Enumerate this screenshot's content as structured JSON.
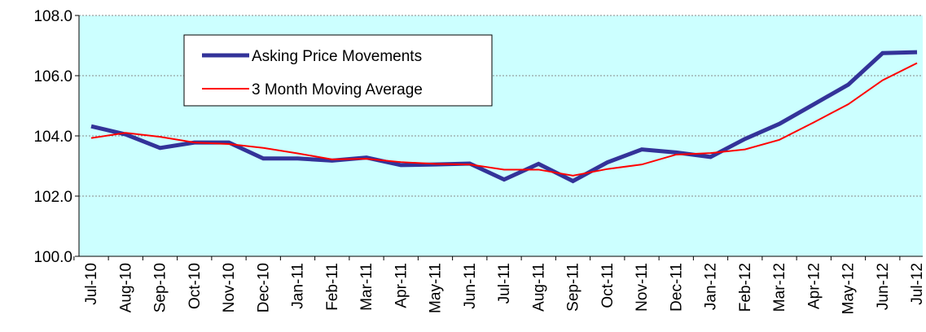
{
  "chart_data": {
    "type": "line",
    "categories": [
      "Jul-10",
      "Aug-10",
      "Sep-10",
      "Oct-10",
      "Nov-10",
      "Dec-10",
      "Jan-11",
      "Feb-11",
      "Mar-11",
      "Apr-11",
      "May-11",
      "Jun-11",
      "Jul-11",
      "Aug-11",
      "Sep-11",
      "Oct-11",
      "Nov-11",
      "Dec-11",
      "Jan-12",
      "Feb-12",
      "Mar-12",
      "Apr-12",
      "May-12",
      "Jun-12",
      "Jul-12"
    ],
    "series": [
      {
        "name": "Asking Price Movements",
        "color": "#333399",
        "values": [
          104.32,
          104.05,
          103.6,
          103.78,
          103.78,
          103.25,
          103.25,
          103.18,
          103.28,
          103.03,
          103.05,
          103.08,
          102.55,
          103.07,
          102.5,
          103.12,
          103.55,
          103.45,
          103.3,
          103.9,
          104.4,
          105.05,
          105.7,
          106.75,
          106.78
        ]
      },
      {
        "name": "3 Month Moving Average",
        "color": "#ff0000",
        "values": [
          103.93,
          104.1,
          103.97,
          103.78,
          103.73,
          103.6,
          103.42,
          103.22,
          103.24,
          103.13,
          103.07,
          103.05,
          102.88,
          102.88,
          102.68,
          102.9,
          103.05,
          103.38,
          103.43,
          103.55,
          103.87,
          104.45,
          105.05,
          105.85,
          106.42
        ]
      }
    ],
    "ylim": [
      100,
      108
    ],
    "yticks": [
      {
        "value": 100,
        "label": "100.0"
      },
      {
        "value": 102,
        "label": "102.0"
      },
      {
        "value": 104,
        "label": "104.0"
      },
      {
        "value": 106,
        "label": "106.0"
      },
      {
        "value": 108,
        "label": "108.0"
      }
    ],
    "grid": true,
    "legend": "upper left",
    "background": "#ccffff"
  }
}
